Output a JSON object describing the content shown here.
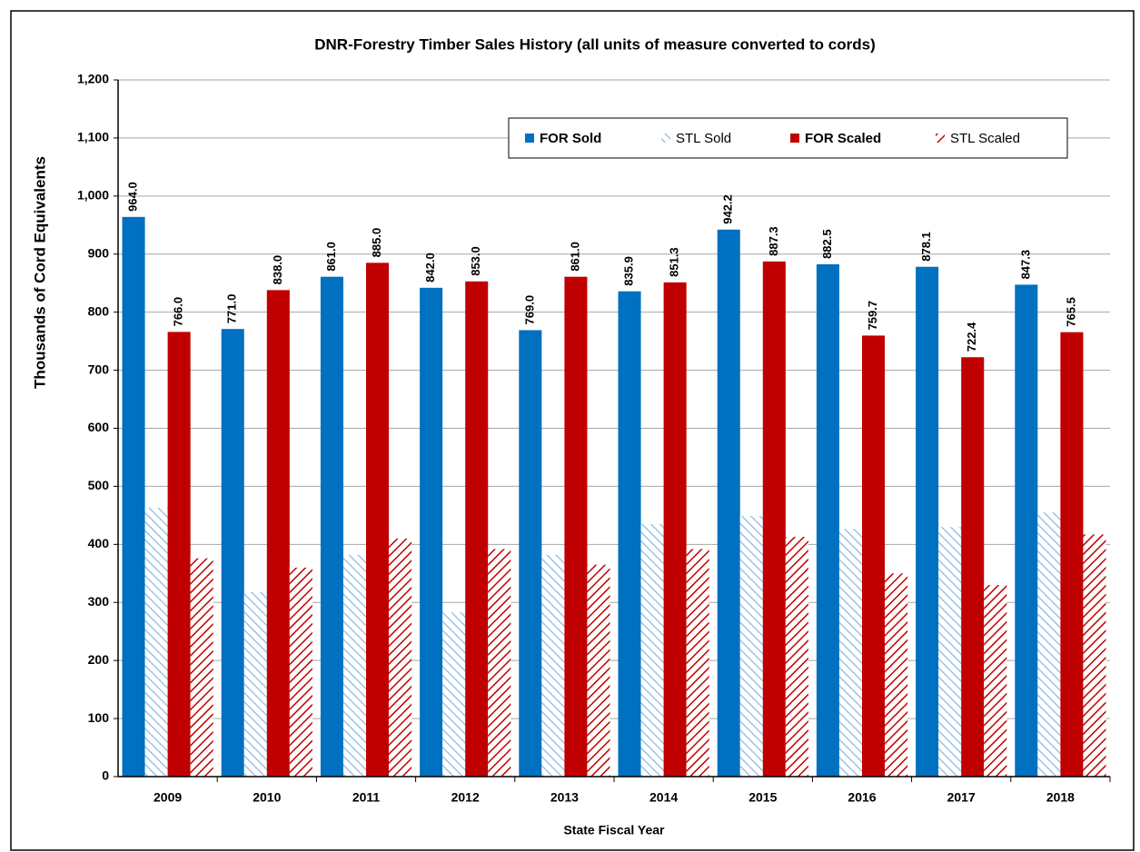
{
  "chart_data": {
    "type": "bar",
    "title": "DNR-Forestry Timber Sales History (all units of measure converted to cords)",
    "x_label": "State Fiscal Year",
    "y_label": "Thousands of Cord Equivalents",
    "categories": [
      "2009",
      "2010",
      "2011",
      "2012",
      "2013",
      "2014",
      "2015",
      "2016",
      "2017",
      "2018"
    ],
    "series": [
      {
        "name": "FOR Sold",
        "color": "#0070c0",
        "pattern": "solid",
        "values": [
          964.0,
          771.0,
          861.0,
          842.0,
          769.0,
          835.9,
          942.2,
          882.5,
          878.1,
          847.3
        ],
        "value_labels": [
          "964.0",
          "771.0",
          "861.0",
          "842.0",
          "769.0",
          "835.9",
          "942.2",
          "882.5",
          "878.1",
          "847.3"
        ]
      },
      {
        "name": "STL Sold",
        "color": "#9dc3e6",
        "pattern": "diagonal-down",
        "values": [
          463,
          318,
          382,
          283,
          382,
          435,
          449,
          427,
          430,
          455
        ]
      },
      {
        "name": "FOR Scaled",
        "color": "#c00000",
        "pattern": "solid",
        "values": [
          766.0,
          838.0,
          885.0,
          853.0,
          861.0,
          851.3,
          887.3,
          759.7,
          722.4,
          765.5
        ],
        "value_labels": [
          "766.0",
          "838.0",
          "885.0",
          "853.0",
          "861.0",
          "851.3",
          "887.3",
          "759.7",
          "722.4",
          "765.5"
        ]
      },
      {
        "name": "STL Scaled",
        "color": "#c00000",
        "pattern": "diagonal-up",
        "values": [
          376,
          360,
          410,
          392,
          365,
          392,
          413,
          350,
          330,
          417
        ]
      }
    ],
    "ylim": [
      0,
      1200
    ],
    "yticks": [
      0,
      100,
      200,
      300,
      400,
      500,
      600,
      700,
      800,
      900,
      {
        "value": 1000,
        "label": "1,000"
      },
      {
        "value": 1100,
        "label": "1,100"
      },
      {
        "value": 1200,
        "label": "1,200"
      }
    ],
    "grid": true,
    "legend": "top-right"
  }
}
